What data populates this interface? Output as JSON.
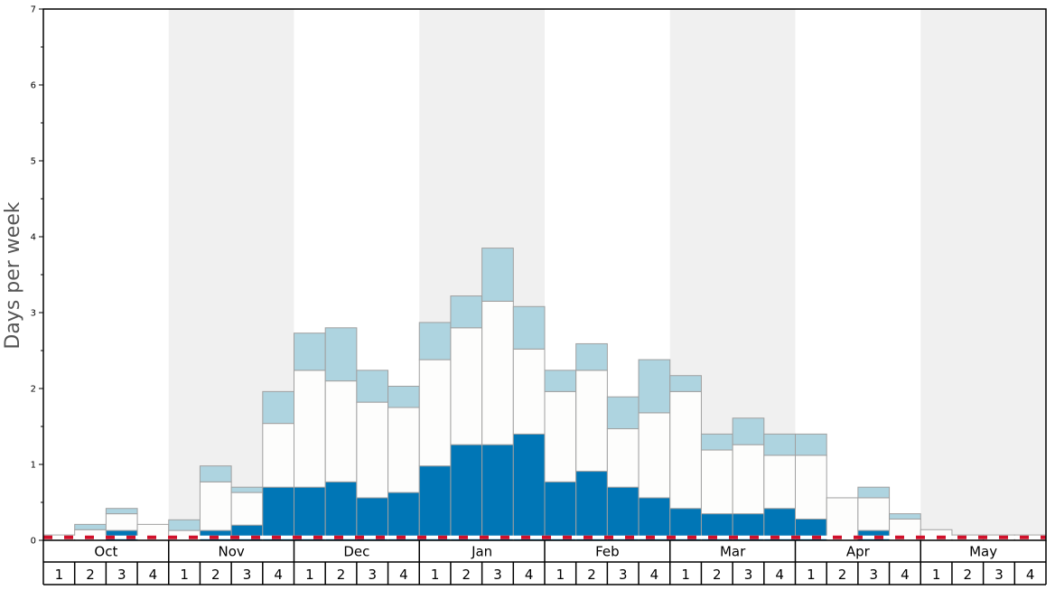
{
  "chart_data": {
    "type": "bar",
    "stacked": true,
    "ylabel": "Days per week",
    "ylim": [
      0,
      7
    ],
    "y_ticks": [
      "0",
      "1",
      "2",
      "3",
      "4",
      "5",
      "6",
      "7"
    ],
    "months": [
      "Oct",
      "Nov",
      "Dec",
      "Jan",
      "Feb",
      "Mar",
      "Apr",
      "May"
    ],
    "weeks": [
      "1",
      "2",
      "3",
      "4"
    ],
    "shaded_months": [
      "Nov",
      "Jan",
      "Mar",
      "May"
    ],
    "threshold": 0.05,
    "colors": {
      "dark": "#0076b6",
      "mid": "#fdfdfc",
      "light": "#aed4e0",
      "band": "#f0f0f0",
      "threshold": "#d0102a",
      "bar_edge": "#a0a0a0"
    },
    "series": [
      {
        "values": [
          0,
          0,
          0.13,
          0,
          0,
          0.13,
          0.2,
          0.7,
          0.7,
          0.77,
          0.56,
          0.63,
          0.98,
          1.26,
          1.26,
          1.4,
          0.77,
          0.91,
          0.7,
          0.56,
          0.42,
          0.35,
          0.35,
          0.42,
          0.28,
          0,
          0.13,
          0,
          0,
          0,
          0,
          0
        ]
      },
      {
        "values": [
          0.07,
          0.14,
          0.22,
          0.21,
          0.13,
          0.64,
          0.43,
          0.84,
          1.54,
          1.33,
          1.26,
          1.12,
          1.4,
          1.54,
          1.89,
          1.12,
          1.19,
          1.33,
          0.77,
          1.12,
          1.54,
          0.84,
          0.91,
          0.7,
          0.84,
          0.56,
          0.43,
          0.28,
          0.14,
          0.07,
          0.07,
          0.07
        ]
      },
      {
        "values": [
          0,
          0.07,
          0.07,
          0,
          0.14,
          0.21,
          0.07,
          0.42,
          0.49,
          0.7,
          0.42,
          0.28,
          0.49,
          0.42,
          0.7,
          0.56,
          0.28,
          0.35,
          0.42,
          0.7,
          0.21,
          0.21,
          0.35,
          0.28,
          0.28,
          0,
          0.14,
          0.07,
          0,
          0,
          0,
          0
        ]
      }
    ]
  }
}
